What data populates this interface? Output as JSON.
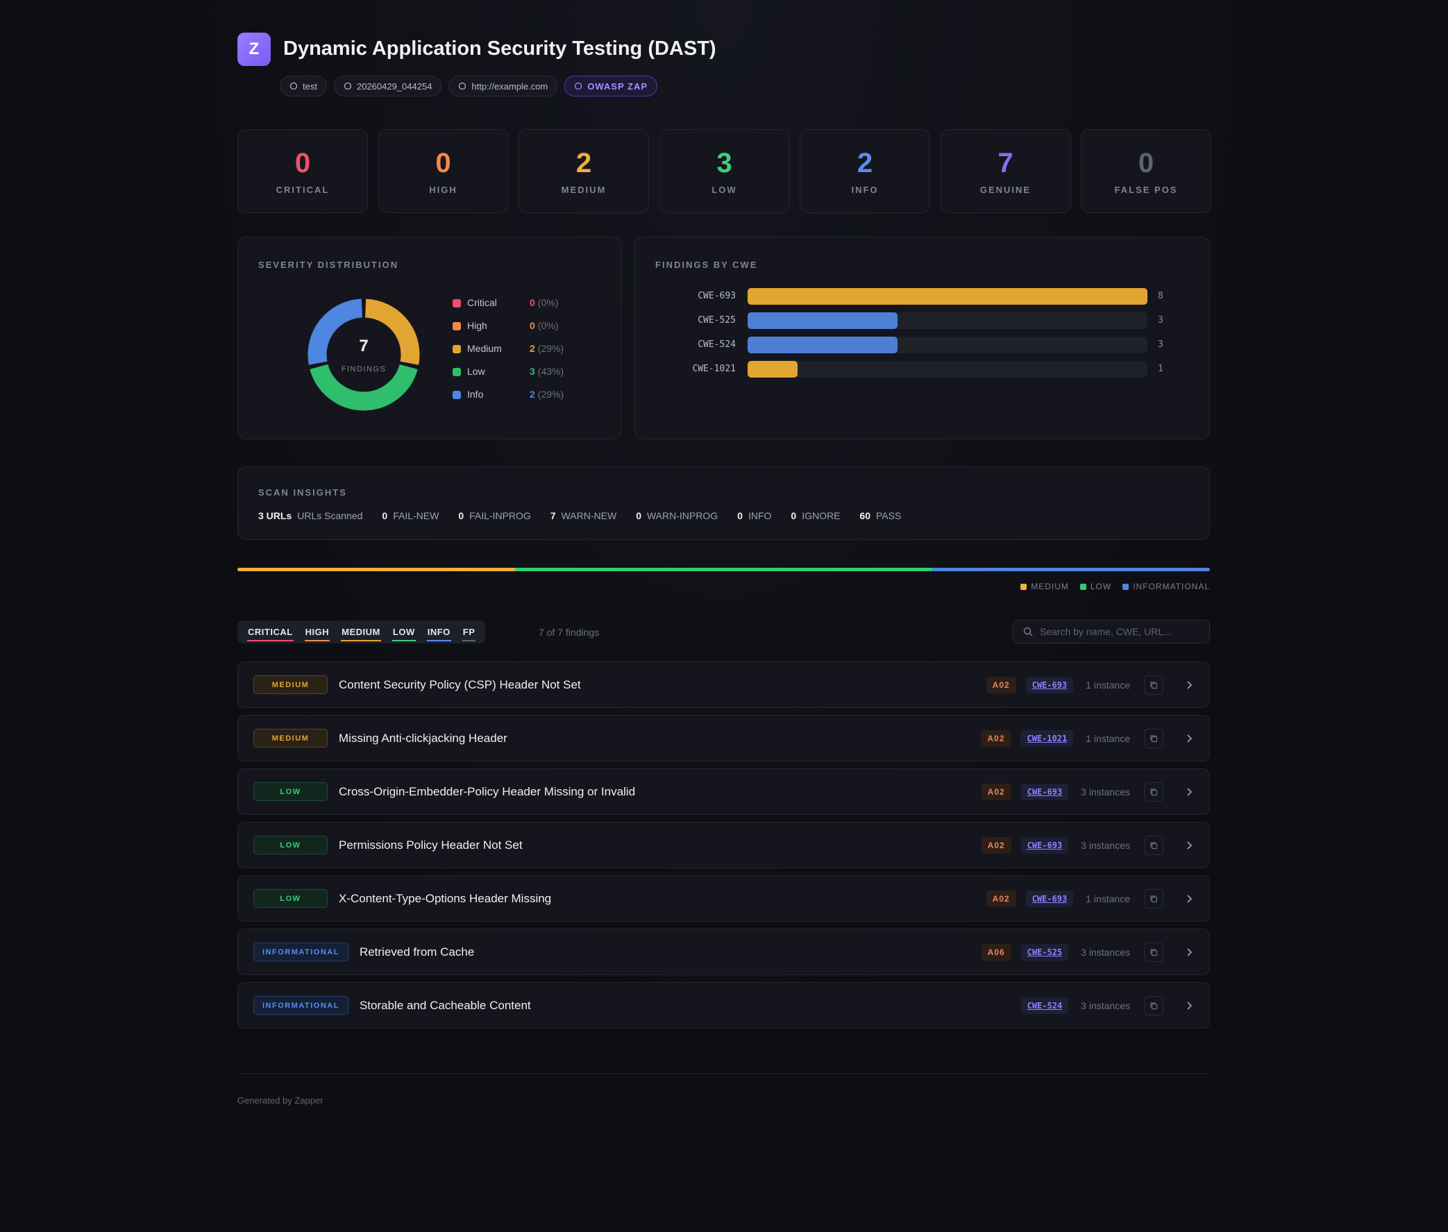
{
  "header": {
    "logo": "Z",
    "title": "Dynamic Application Security Testing (DAST)",
    "tags": [
      "test",
      "20260429_044254",
      "http://example.com",
      "OWASP ZAP"
    ]
  },
  "stats": [
    {
      "value": 0,
      "label": "CRITICAL",
      "color": "#f0506e"
    },
    {
      "value": 0,
      "label": "HIGH",
      "color": "#f5894a"
    },
    {
      "value": 2,
      "label": "MEDIUM",
      "color": "#f0b03c"
    },
    {
      "value": 3,
      "label": "LOW",
      "color": "#3ecf7a"
    },
    {
      "value": 2,
      "label": "INFO",
      "color": "#5b8def"
    },
    {
      "value": 7,
      "label": "GENUINE",
      "color": "#8b6cf6"
    },
    {
      "value": 0,
      "label": "FALSE POS",
      "color": "#5f6470"
    }
  ],
  "severity_distribution": {
    "title": "SEVERITY DISTRIBUTION",
    "total": 7,
    "total_label": "FINDINGS",
    "items": [
      {
        "name": "Critical",
        "value": 0,
        "percent": "(0%)",
        "color": "#f0506e"
      },
      {
        "name": "High",
        "value": 0,
        "percent": "(0%)",
        "color": "#f5894a"
      },
      {
        "name": "Medium",
        "value": 2,
        "percent": "(29%)",
        "color": "#e3a532"
      },
      {
        "name": "Low",
        "value": 3,
        "percent": "(43%)",
        "color": "#2fbf6c"
      },
      {
        "name": "Info",
        "value": 2,
        "percent": "(29%)",
        "color": "#4e86e0"
      }
    ]
  },
  "findings_by_cwe": {
    "title": "FINDINGS BY CWE",
    "bars": [
      {
        "name": "CWE-693",
        "value": 8,
        "color": "#e3a532"
      },
      {
        "name": "CWE-525",
        "value": 3,
        "color": "#4e7fd6"
      },
      {
        "name": "CWE-524",
        "value": 3,
        "color": "#4e7fd6"
      },
      {
        "name": "CWE-1021",
        "value": 1,
        "color": "#e3a532"
      }
    ]
  },
  "scan_insights": {
    "title": "SCAN INSIGHTS",
    "items": [
      {
        "value": "3 URLs",
        "label": "URLs Scanned"
      },
      {
        "value": 0,
        "label": "FAIL-NEW"
      },
      {
        "value": 0,
        "label": "FAIL-INPROG"
      },
      {
        "value": 7,
        "label": "WARN-NEW"
      },
      {
        "value": 0,
        "label": "WARN-INPROG"
      },
      {
        "value": 0,
        "label": "INFO"
      },
      {
        "value": 0,
        "label": "IGNORE"
      },
      {
        "value": 60,
        "label": "PASS"
      }
    ]
  },
  "severity_bar": {
    "segments": [
      {
        "name": "MEDIUM",
        "value": 2,
        "color": "#f0b03c"
      },
      {
        "name": "LOW",
        "value": 3,
        "color": "#2fcf6e"
      },
      {
        "name": "INFORMATIONAL",
        "value": 2,
        "color": "#4e86e0"
      }
    ]
  },
  "filters": {
    "tabs": [
      {
        "label": "CRITICAL",
        "color": "#f0506e"
      },
      {
        "label": "HIGH",
        "color": "#f5894a"
      },
      {
        "label": "MEDIUM",
        "color": "#e3a532"
      },
      {
        "label": "LOW",
        "color": "#3ecf7a"
      },
      {
        "label": "INFO",
        "color": "#5b8def"
      },
      {
        "label": "FP",
        "color": "#5f6470"
      }
    ],
    "count": "7 of 7 findings",
    "search_placeholder": "Search by name, CWE, URL..."
  },
  "findings": [
    {
      "severity": "MEDIUM",
      "title": "Content Security Policy (CSP) Header Not Set",
      "owasp": "A02",
      "cwe": "CWE-693",
      "instances": "1 instance"
    },
    {
      "severity": "MEDIUM",
      "title": "Missing Anti-clickjacking Header",
      "owasp": "A02",
      "cwe": "CWE-1021",
      "instances": "1 instance"
    },
    {
      "severity": "LOW",
      "title": "Cross-Origin-Embedder-Policy Header Missing or Invalid",
      "owasp": "A02",
      "cwe": "CWE-693",
      "instances": "3 instances"
    },
    {
      "severity": "LOW",
      "title": "Permissions Policy Header Not Set",
      "owasp": "A02",
      "cwe": "CWE-693",
      "instances": "3 instances"
    },
    {
      "severity": "LOW",
      "title": "X-Content-Type-Options Header Missing",
      "owasp": "A02",
      "cwe": "CWE-693",
      "instances": "1 instance"
    },
    {
      "severity": "INFORMATIONAL",
      "title": "Retrieved from Cache",
      "owasp": "A06",
      "cwe": "CWE-525",
      "instances": "3 instances"
    },
    {
      "severity": "INFORMATIONAL",
      "title": "Storable and Cacheable Content",
      "cwe": "CWE-524",
      "instances": "3 instances"
    }
  ],
  "footer": "Generated by Zapper"
}
